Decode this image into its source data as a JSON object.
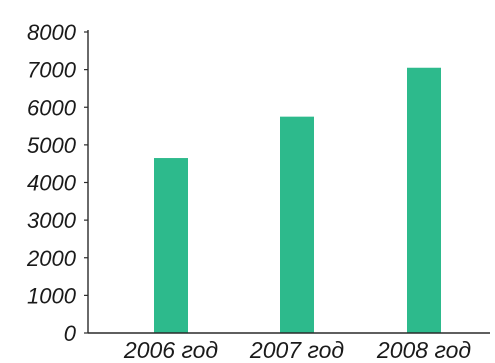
{
  "chart_data": {
    "type": "bar",
    "title": "",
    "xlabel": "",
    "ylabel": "",
    "categories": [
      "2006 год",
      "2007 год",
      "2008 год"
    ],
    "values": [
      4650,
      5750,
      7050
    ],
    "ylim": [
      0,
      8000
    ],
    "yticks": [
      0,
      1000,
      2000,
      3000,
      4000,
      5000,
      6000,
      7000,
      8000
    ],
    "bar_color": "#2dba8c",
    "grid": false,
    "legend": "none"
  }
}
